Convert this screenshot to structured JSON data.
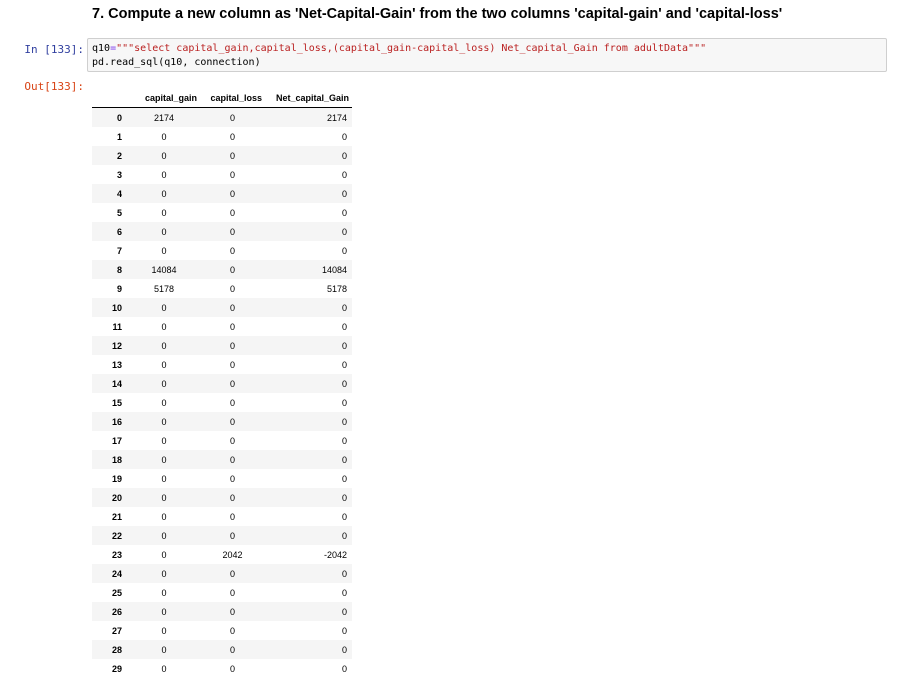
{
  "heading": "7. Compute a new column as 'Net-Capital-Gain' from the two columns 'capital-gain' and 'capital-loss'",
  "cell": {
    "in_prompt": "In [133]:",
    "out_prompt": "Out[133]:",
    "code_line1_var": "q10",
    "code_line1_op": "=",
    "code_line1_str": "\"\"\"select capital_gain,capital_loss,(capital_gain-capital_loss) Net_capital_Gain from adultData\"\"\"",
    "code_line2_fn": "pd.read_sql",
    "code_line2_open": "(",
    "code_line2_arg1": "q10",
    "code_line2_sep": ", ",
    "code_line2_arg2": "connection",
    "code_line2_close": ")"
  },
  "table": {
    "columns": [
      "",
      "capital_gain",
      "capital_loss",
      "Net_capital_Gain"
    ],
    "rows": [
      [
        "0",
        "2174",
        "0",
        "2174"
      ],
      [
        "1",
        "0",
        "0",
        "0"
      ],
      [
        "2",
        "0",
        "0",
        "0"
      ],
      [
        "3",
        "0",
        "0",
        "0"
      ],
      [
        "4",
        "0",
        "0",
        "0"
      ],
      [
        "5",
        "0",
        "0",
        "0"
      ],
      [
        "6",
        "0",
        "0",
        "0"
      ],
      [
        "7",
        "0",
        "0",
        "0"
      ],
      [
        "8",
        "14084",
        "0",
        "14084"
      ],
      [
        "9",
        "5178",
        "0",
        "5178"
      ],
      [
        "10",
        "0",
        "0",
        "0"
      ],
      [
        "11",
        "0",
        "0",
        "0"
      ],
      [
        "12",
        "0",
        "0",
        "0"
      ],
      [
        "13",
        "0",
        "0",
        "0"
      ],
      [
        "14",
        "0",
        "0",
        "0"
      ],
      [
        "15",
        "0",
        "0",
        "0"
      ],
      [
        "16",
        "0",
        "0",
        "0"
      ],
      [
        "17",
        "0",
        "0",
        "0"
      ],
      [
        "18",
        "0",
        "0",
        "0"
      ],
      [
        "19",
        "0",
        "0",
        "0"
      ],
      [
        "20",
        "0",
        "0",
        "0"
      ],
      [
        "21",
        "0",
        "0",
        "0"
      ],
      [
        "22",
        "0",
        "0",
        "0"
      ],
      [
        "23",
        "0",
        "2042",
        "-2042"
      ],
      [
        "24",
        "0",
        "0",
        "0"
      ],
      [
        "25",
        "0",
        "0",
        "0"
      ],
      [
        "26",
        "0",
        "0",
        "0"
      ],
      [
        "27",
        "0",
        "0",
        "0"
      ],
      [
        "28",
        "0",
        "0",
        "0"
      ],
      [
        "29",
        "0",
        "0",
        "0"
      ]
    ]
  }
}
